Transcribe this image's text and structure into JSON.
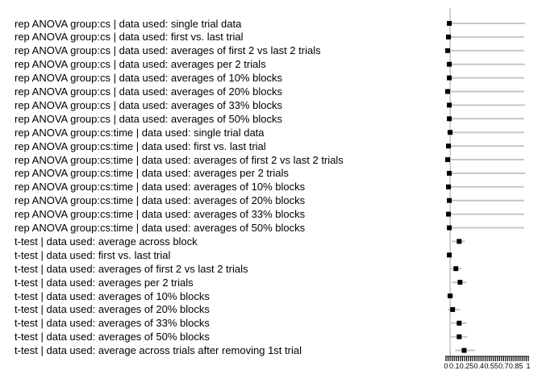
{
  "chart_data": {
    "type": "scatter",
    "subtype": "forest-dot-plot-with-error-bars",
    "title": "",
    "xlabel": "",
    "ylabel": "",
    "xlim": [
      0,
      1
    ],
    "grid": false,
    "legend": "none",
    "x_tick_values": [
      0,
      0.1,
      0.25,
      0.4,
      0.55,
      0.7,
      0.85,
      1
    ],
    "x_tick_labels": [
      "0",
      "0.1",
      "0.25",
      "0.4",
      "0.55",
      "0.7",
      "0.85",
      "1"
    ],
    "minor_tick_step": 0.025,
    "reference_line_x": 0.05,
    "colors": {
      "marker": "#000000",
      "error_bar": "#c6c6c6",
      "reference_line": "#b4b4b4",
      "axis": "#000000",
      "text": "#000000"
    },
    "rows": [
      {
        "label": "rep ANOVA group:cs | data used: single trial data",
        "value": 0.04,
        "lo": 0.01,
        "hi": 0.96
      },
      {
        "label": "rep ANOVA group:cs | data used: first vs. last trial",
        "value": 0.03,
        "lo": 0.0,
        "hi": 0.95
      },
      {
        "label": "rep ANOVA group:cs | data used: averages of first 2 vs last 2 trials",
        "value": 0.02,
        "lo": 0.0,
        "hi": 0.95
      },
      {
        "label": "rep ANOVA group:cs | data used: averages per 2 trials",
        "value": 0.04,
        "lo": 0.01,
        "hi": 0.96
      },
      {
        "label": "rep ANOVA group:cs | data used: averages of 10% blocks",
        "value": 0.04,
        "lo": 0.01,
        "hi": 0.95
      },
      {
        "label": "rep ANOVA group:cs | data used: averages of 20% blocks",
        "value": 0.02,
        "lo": 0.0,
        "hi": 0.95
      },
      {
        "label": "rep ANOVA group:cs | data used: averages of 33% blocks",
        "value": 0.04,
        "lo": 0.01,
        "hi": 0.96
      },
      {
        "label": "rep ANOVA group:cs | data used: averages of 50% blocks",
        "value": 0.04,
        "lo": 0.01,
        "hi": 0.95
      },
      {
        "label": "rep ANOVA group:cs:time | data used: single trial data",
        "value": 0.05,
        "lo": 0.01,
        "hi": 0.95
      },
      {
        "label": "rep ANOVA group:cs:time | data used: first vs. last trial",
        "value": 0.03,
        "lo": 0.0,
        "hi": 0.95
      },
      {
        "label": "rep ANOVA group:cs:time | data used: averages of first 2 vs last 2 trials",
        "value": 0.02,
        "lo": 0.0,
        "hi": 0.95
      },
      {
        "label": "rep ANOVA group:cs:time | data used: averages per 2 trials",
        "value": 0.04,
        "lo": 0.01,
        "hi": 0.96
      },
      {
        "label": "rep ANOVA group:cs:time | data used: averages of 10% blocks",
        "value": 0.03,
        "lo": 0.0,
        "hi": 0.95
      },
      {
        "label": "rep ANOVA group:cs:time | data used: averages of 20% blocks",
        "value": 0.04,
        "lo": 0.01,
        "hi": 0.95
      },
      {
        "label": "rep ANOVA group:cs:time | data used: averages of 33% blocks",
        "value": 0.03,
        "lo": 0.0,
        "hi": 0.95
      },
      {
        "label": "rep ANOVA group:cs:time | data used: averages of 50% blocks",
        "value": 0.04,
        "lo": 0.01,
        "hi": 0.95
      },
      {
        "label": "t-test | data used: average across block",
        "value": 0.16,
        "lo": 0.07,
        "hi": 0.23
      },
      {
        "label": "t-test | data used: first vs. last trial",
        "value": 0.04,
        "lo": 0.01,
        "hi": 0.07
      },
      {
        "label": "t-test | data used: averages of first 2 vs last 2 trials",
        "value": 0.12,
        "lo": 0.04,
        "hi": 0.19
      },
      {
        "label": "t-test | data used: averages per 2 trials",
        "value": 0.17,
        "lo": 0.08,
        "hi": 0.25
      },
      {
        "label": "t-test | data used: averages of 10% blocks",
        "value": 0.05,
        "lo": 0.01,
        "hi": 0.09
      },
      {
        "label": "t-test | data used: averages of 20% blocks",
        "value": 0.08,
        "lo": 0.02,
        "hi": 0.17
      },
      {
        "label": "t-test | data used: averages of 33% blocks",
        "value": 0.16,
        "lo": 0.06,
        "hi": 0.25
      },
      {
        "label": "t-test | data used: averages of 50% blocks",
        "value": 0.16,
        "lo": 0.06,
        "hi": 0.26
      },
      {
        "label": "t-test | data used: average across trials after removing 1st trial",
        "value": 0.22,
        "lo": 0.11,
        "hi": 0.35
      }
    ]
  }
}
